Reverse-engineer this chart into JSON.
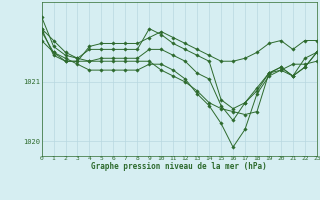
{
  "title": "Graphe pression niveau de la mer (hPa)",
  "bg_color": "#d6eef2",
  "grid_color": "#b8d8e0",
  "line_color": "#2d6a2d",
  "marker_color": "#2d6a2d",
  "xlim": [
    0,
    23
  ],
  "ylim": [
    1019.75,
    1022.35
  ],
  "yticks": [
    1020,
    1021
  ],
  "xticks": [
    0,
    1,
    2,
    3,
    4,
    5,
    6,
    7,
    8,
    9,
    10,
    11,
    12,
    13,
    14,
    15,
    16,
    17,
    18,
    19,
    20,
    21,
    22,
    23
  ],
  "series": [
    [
      1021.9,
      1021.45,
      1021.35,
      1021.35,
      1021.35,
      1021.35,
      1021.35,
      1021.35,
      1021.35,
      1021.35,
      1021.2,
      1021.1,
      1021.0,
      1020.85,
      1020.65,
      1020.55,
      1020.5,
      1020.45,
      1020.5,
      1021.15,
      1021.2,
      1021.3,
      1021.3,
      1021.35
    ],
    [
      1021.7,
      1021.5,
      1021.35,
      1021.35,
      1021.6,
      1021.65,
      1021.65,
      1021.65,
      1021.65,
      1021.75,
      1021.85,
      1021.75,
      1021.65,
      1021.55,
      1021.45,
      1021.35,
      1021.35,
      1021.4,
      1021.5,
      1021.65,
      1021.7,
      1021.55,
      1021.7,
      1021.7
    ],
    [
      1021.9,
      1021.7,
      1021.5,
      1021.4,
      1021.55,
      1021.55,
      1021.55,
      1021.55,
      1021.55,
      1021.9,
      1021.8,
      1021.65,
      1021.55,
      1021.45,
      1021.35,
      1020.7,
      1020.55,
      1020.65,
      1020.85,
      1021.15,
      1021.25,
      1021.1,
      1021.25,
      1021.5
    ],
    [
      1022.1,
      1021.6,
      1021.45,
      1021.4,
      1021.35,
      1021.4,
      1021.4,
      1021.4,
      1021.4,
      1021.55,
      1021.55,
      1021.45,
      1021.35,
      1021.15,
      1021.05,
      1020.6,
      1020.35,
      1020.65,
      1020.9,
      1021.15,
      1021.25,
      1021.1,
      1021.25,
      1021.5
    ],
    [
      1021.85,
      1021.5,
      1021.4,
      1021.3,
      1021.2,
      1021.2,
      1021.2,
      1021.2,
      1021.2,
      1021.3,
      1021.3,
      1021.2,
      1021.05,
      1020.8,
      1020.6,
      1020.3,
      1019.9,
      1020.2,
      1020.8,
      1021.1,
      1021.2,
      1021.1,
      1021.4,
      1021.5
    ]
  ]
}
